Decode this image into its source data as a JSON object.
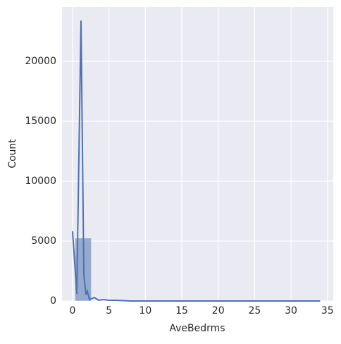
{
  "chart_data": {
    "type": "histogram",
    "xlabel": "AveBedrms",
    "ylabel": "Count",
    "bins": [
      0.333,
      2.582,
      4.832,
      7.081,
      9.331,
      11.58,
      13.829,
      16.079,
      18.328,
      20.578,
      22.827,
      25.076,
      27.326,
      29.575,
      31.825,
      34.074
    ],
    "counts": [
      5250,
      20,
      5,
      2,
      1,
      1,
      0,
      0,
      0,
      0,
      0,
      0,
      0,
      0,
      1
    ],
    "color": "#4c72b0",
    "kde": {
      "x": [
        0,
        0.58,
        1.16,
        1.55,
        1.84,
        2.03,
        2.32,
        3.0,
        3.6,
        4.2,
        5,
        6,
        8,
        34
      ],
      "values": [
        5820,
        590,
        23400,
        2180,
        530,
        820,
        120,
        290,
        60,
        120,
        60,
        60,
        0,
        0
      ]
    },
    "xlim": [
      -1.45,
      35.8
    ],
    "ylim": [
      0,
      24530
    ],
    "xticks": [
      0,
      5,
      10,
      15,
      20,
      25,
      30,
      35
    ],
    "yticks": [
      0,
      5000,
      10000,
      15000,
      20000
    ],
    "grid": true
  }
}
